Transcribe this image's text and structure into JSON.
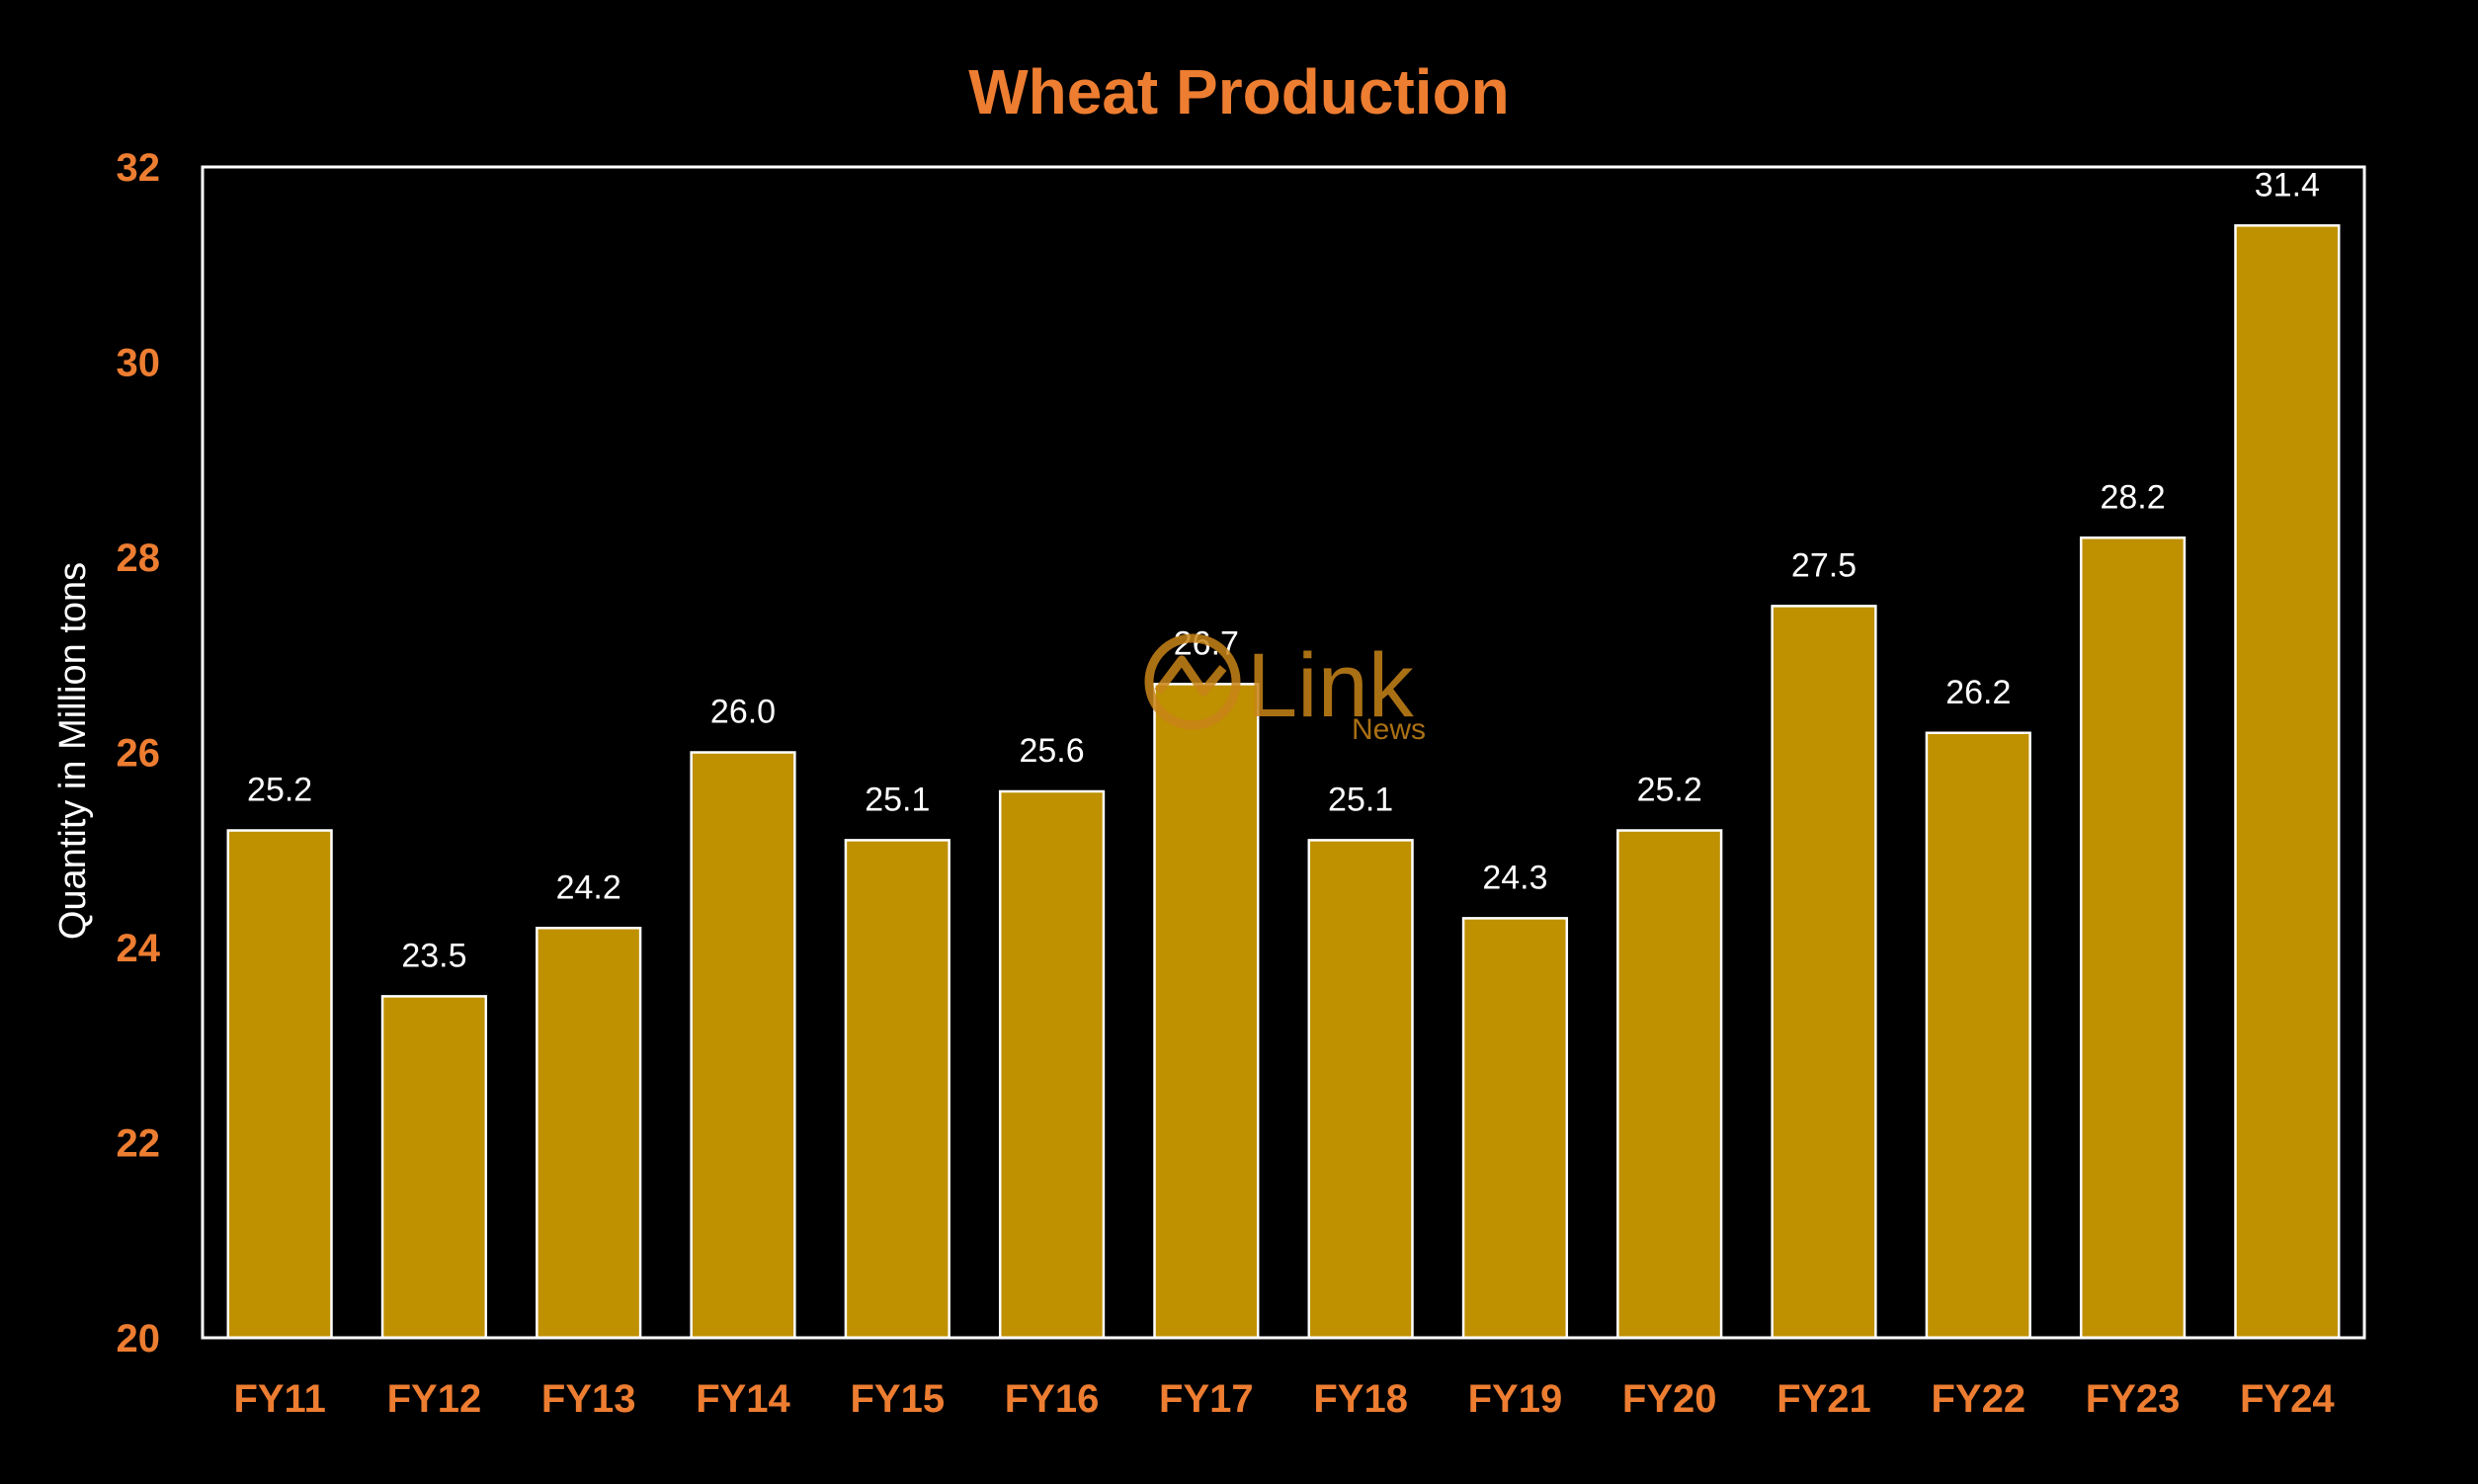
{
  "chart_data": {
    "type": "bar",
    "title": "Wheat Production",
    "xlabel": "",
    "ylabel": "Quantity in Million tons",
    "ylim": [
      20,
      32
    ],
    "yticks": [
      20,
      22,
      24,
      26,
      28,
      30,
      32
    ],
    "categories": [
      "FY11",
      "FY12",
      "FY13",
      "FY14",
      "FY15",
      "FY16",
      "FY17",
      "FY18",
      "FY19",
      "FY20",
      "FY21",
      "FY22",
      "FY23",
      "FY24"
    ],
    "values": [
      25.2,
      23.5,
      24.2,
      26.0,
      25.1,
      25.6,
      26.7,
      25.1,
      24.3,
      25.2,
      27.5,
      26.2,
      28.2,
      31.4
    ],
    "data_labels": [
      "25.2",
      "23.5",
      "24.2",
      "26.0",
      "25.1",
      "25.6",
      "26.7",
      "25.1",
      "24.3",
      "25.2",
      "27.5",
      "26.2",
      "28.2",
      "31.4"
    ],
    "grid": false,
    "legend": "none",
    "colors": {
      "background": "#000000",
      "bar_fill": "#BF9000",
      "bar_stroke": "#FFFFFF",
      "plot_border": "#FFFFFF",
      "title": "#ED7D31",
      "tick_labels": "#ED7D31",
      "axis_label": "#FFFFFF",
      "data_labels": "#FFFFFF"
    }
  },
  "watermark": {
    "text": "Link",
    "subtext": "News",
    "icon": "link-news-logo-icon",
    "color": "#C88418"
  }
}
